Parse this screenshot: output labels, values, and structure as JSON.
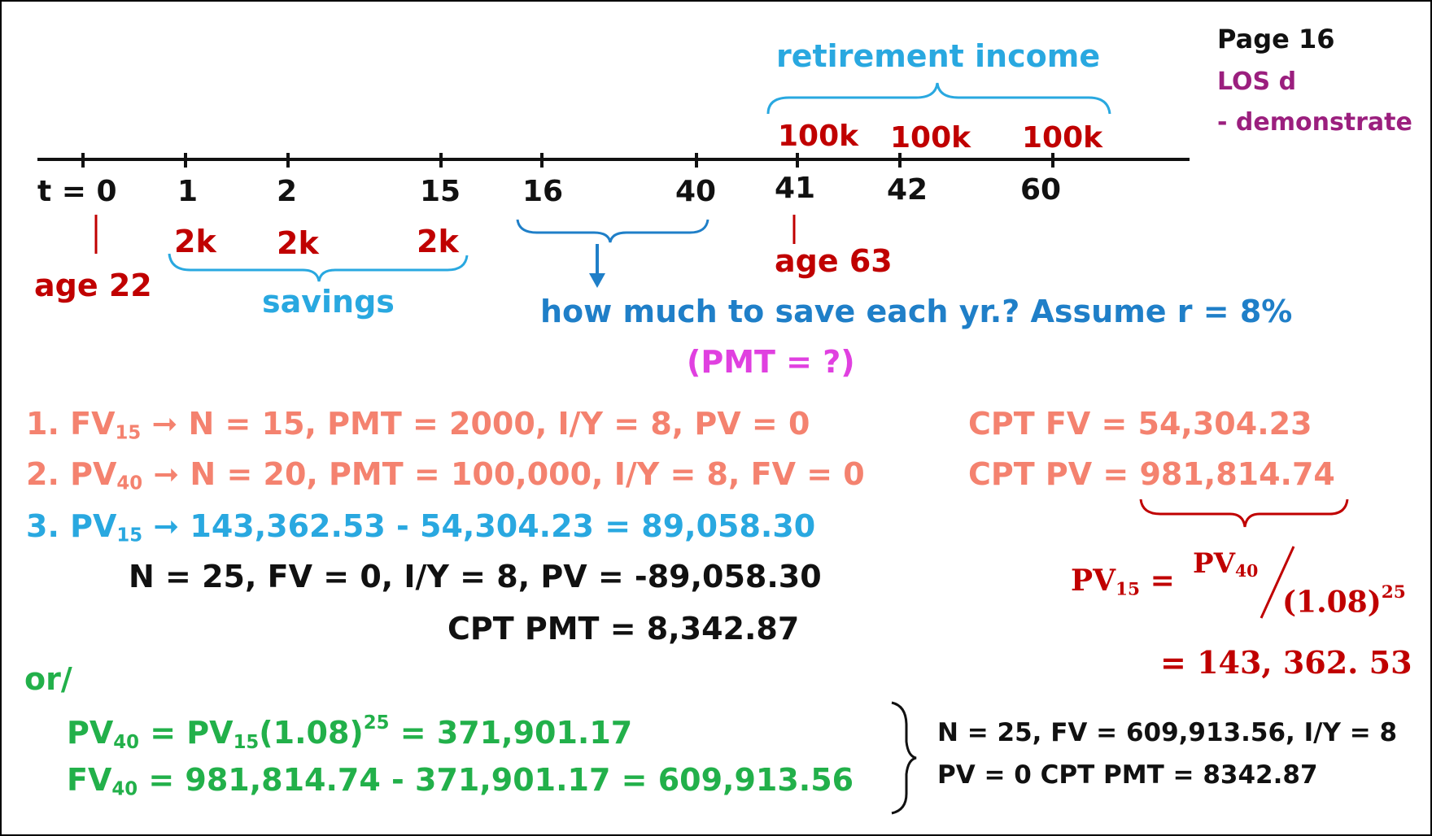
{
  "colors": {
    "black": "#111111",
    "darkred": "#c00000",
    "blue": "#1f7fc8",
    "lightblue": "#29a8e0",
    "magenta": "#e040e0",
    "salmon": "#f4826f",
    "green": "#22b04a",
    "purple": "#9b1f7e"
  },
  "header": {
    "page": "Page 16",
    "los": "LOS d",
    "demo": "- demonstrate"
  },
  "timeline": {
    "t_label": "t = 0",
    "ticks": [
      "1",
      "2",
      "15",
      "16",
      "40",
      "41",
      "42",
      "60"
    ],
    "savings_amounts": [
      "2k",
      "2k",
      "2k"
    ],
    "income_amounts": [
      "100k",
      "100k",
      "100k"
    ],
    "retirement_income_label": "retirement income",
    "savings_label": "savings",
    "age_start": "age 22",
    "age_retire": "age 63"
  },
  "question": {
    "text": "how much to save each yr.? Assume r = 8%",
    "pmt": "(PMT = ?)"
  },
  "steps": {
    "s1_prefix": "1. FV",
    "s1_sub": "15",
    "s1_rest": "➞ N = 15, PMT = 2000, I/Y = 8, PV = 0",
    "s1_result": "CPT FV = 54,304.23",
    "s2_prefix": "2. PV",
    "s2_sub": "40",
    "s2_rest": "➞ N = 20, PMT = 100,000, I/Y = 8, FV = 0",
    "s2_result": "CPT PV = 981,814.74",
    "s3_prefix": "3. PV",
    "s3_sub": "15",
    "s3_rest": "➞ 143,362.53 - 54,304.23 = 89,058.30",
    "s3_line2": "N = 25, FV = 0, I/Y = 8, PV = -89,058.30",
    "s3_line3": "CPT PMT = 8,342.87"
  },
  "formula": {
    "lhs": "PV",
    "lhs_sub": "15",
    "eq": "=",
    "num": "PV",
    "num_sub": "40",
    "den": "(1.08)",
    "den_sup": "25",
    "result": "= 143, 362. 53"
  },
  "alternative": {
    "or": "or/",
    "l1_a": "PV",
    "l1_a_sub": "40",
    "l1_b": " = PV",
    "l1_b_sub": "15",
    "l1_c": "(1.08)",
    "l1_c_sup": "25",
    "l1_d": " = 371,901.17",
    "l2_a": "FV",
    "l2_a_sub": "40",
    "l2_b": " = 981,814.74 - 371,901.17 = 609,913.56",
    "calc_1": "N = 25, FV = 609,913.56, I/Y = 8",
    "calc_2": "PV = 0 CPT PMT = 8342.87"
  }
}
